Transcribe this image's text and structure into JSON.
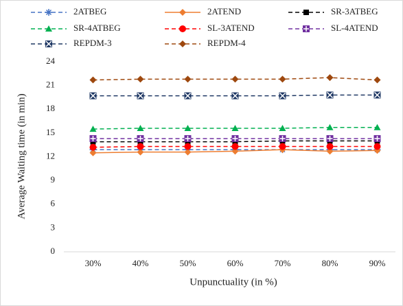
{
  "chart_data": {
    "type": "line",
    "x_label": "Unpunctuality (in %)",
    "y_label": "Average Waiting time (in min)",
    "categories": [
      "30%",
      "40%",
      "50%",
      "60%",
      "70%",
      "80%",
      "90%"
    ],
    "ylim": [
      0,
      24
    ],
    "yticks": [
      0,
      3,
      6,
      9,
      12,
      15,
      18,
      21,
      24
    ],
    "series": [
      {
        "name": "2ATBEG",
        "color": "#4472c4",
        "line_style": "dashed",
        "marker": "asterisk",
        "values": [
          12.9,
          12.9,
          12.9,
          12.9,
          12.9,
          12.9,
          12.9
        ]
      },
      {
        "name": "2ATEND",
        "color": "#ed7d31",
        "line_style": "solid",
        "marker": "diamond",
        "values": [
          12.5,
          12.6,
          12.6,
          12.7,
          12.9,
          12.7,
          12.8
        ]
      },
      {
        "name": "SR-3ATBEG",
        "color": "#000000",
        "line_style": "dashed",
        "marker": "square",
        "values": [
          13.9,
          13.9,
          13.9,
          13.9,
          14.0,
          14.0,
          14.0
        ]
      },
      {
        "name": "SR-4ATBEG",
        "color": "#00b050",
        "line_style": "dashed",
        "marker": "triangle",
        "values": [
          15.5,
          15.6,
          15.6,
          15.6,
          15.6,
          15.7,
          15.7
        ]
      },
      {
        "name": "SL-3ATEND",
        "color": "#ff0000",
        "line_style": "dashed",
        "marker": "circle",
        "values": [
          13.2,
          13.3,
          13.3,
          13.3,
          13.3,
          13.3,
          13.3
        ]
      },
      {
        "name": "SL-4ATEND",
        "color": "#7030a0",
        "line_style": "dashed",
        "marker": "plus-square",
        "values": [
          14.3,
          14.3,
          14.3,
          14.3,
          14.3,
          14.3,
          14.3
        ]
      },
      {
        "name": "REPDM-3",
        "color": "#1f3864",
        "line_style": "dashed",
        "marker": "x-square",
        "values": [
          19.7,
          19.7,
          19.7,
          19.7,
          19.7,
          19.8,
          19.8
        ]
      },
      {
        "name": "REPDM-4",
        "color": "#9e480e",
        "line_style": "dashed",
        "marker": "diamond",
        "values": [
          21.7,
          21.8,
          21.8,
          21.8,
          21.8,
          22.0,
          21.7
        ]
      }
    ]
  }
}
